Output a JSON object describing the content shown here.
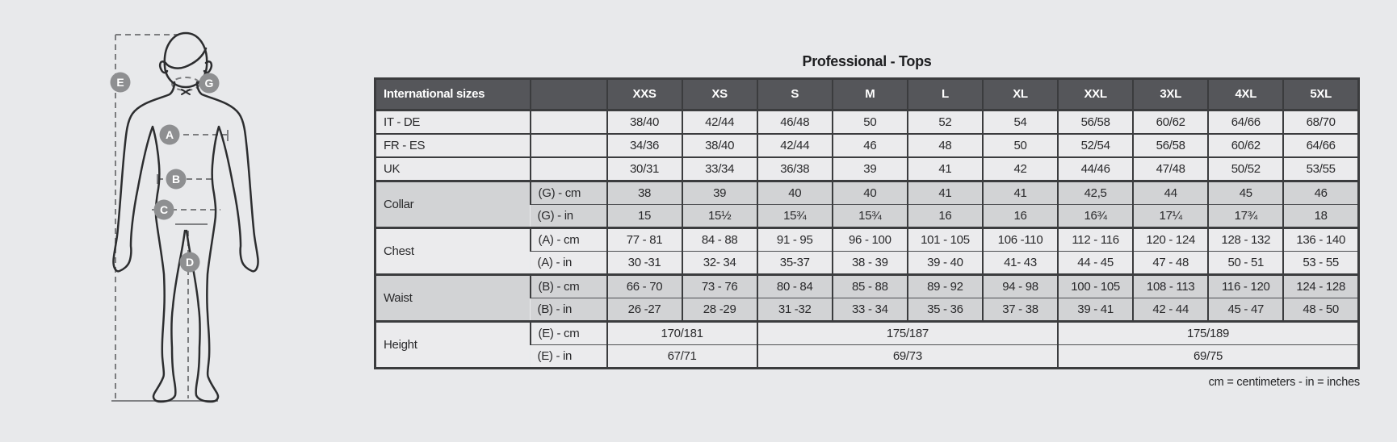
{
  "title": "Professional - Tops",
  "footnote": "cm = centimeters - in = inches",
  "colors": {
    "header_bg": "#55565a",
    "row_light": "#ebebed",
    "row_shade": "#d2d3d5",
    "border": "#3b3c3e",
    "page_bg": "#e8e9eb",
    "badge": "#8e8f91"
  },
  "figure": {
    "badges": [
      "E",
      "G",
      "A",
      "B",
      "C",
      "D"
    ]
  },
  "table": {
    "header": {
      "col1": "International sizes",
      "col2": "",
      "sizes": [
        "XXS",
        "XS",
        "S",
        "M",
        "L",
        "XL",
        "XXL",
        "3XL",
        "4XL",
        "5XL"
      ]
    },
    "simple_rows": [
      {
        "label": "IT - DE",
        "values": [
          "38/40",
          "42/44",
          "46/48",
          "50",
          "52",
          "54",
          "56/58",
          "60/62",
          "64/66",
          "68/70"
        ]
      },
      {
        "label": "FR - ES",
        "values": [
          "34/36",
          "38/40",
          "42/44",
          "46",
          "48",
          "50",
          "52/54",
          "56/58",
          "60/62",
          "64/66"
        ]
      },
      {
        "label": "UK",
        "values": [
          "30/31",
          "33/34",
          "36/38",
          "39",
          "41",
          "42",
          "44/46",
          "47/48",
          "50/52",
          "53/55"
        ]
      }
    ],
    "sections": [
      {
        "label": "Collar",
        "shaded": true,
        "rows": [
          {
            "unit": "(G) - cm",
            "values": [
              "38",
              "39",
              "40",
              "40",
              "41",
              "41",
              "42,5",
              "44",
              "45",
              "46"
            ]
          },
          {
            "unit": "(G)  - in",
            "values": [
              "15",
              "15½",
              "15¾",
              "15¾",
              "16",
              "16",
              "16¾",
              "17¼",
              "17¾",
              "18"
            ]
          }
        ]
      },
      {
        "label": "Chest",
        "shaded": false,
        "rows": [
          {
            "unit": "(A) - cm",
            "values": [
              "77 - 81",
              "84 - 88",
              "91 - 95",
              "96 - 100",
              "101 - 105",
              "106 -110",
              "112 - 116",
              "120 - 124",
              "128 - 132",
              "136 - 140"
            ]
          },
          {
            "unit": "(A) - in",
            "values": [
              "30 -31",
              "32- 34",
              "35-37",
              "38 - 39",
              "39 - 40",
              "41- 43",
              "44 - 45",
              "47 - 48",
              "50 - 51",
              "53 - 55"
            ]
          }
        ]
      },
      {
        "label": "Waist",
        "shaded": true,
        "rows": [
          {
            "unit": "(B) - cm",
            "values": [
              "66 - 70",
              "73 - 76",
              "80 - 84",
              "85 - 88",
              "89 - 92",
              "94 - 98",
              "100 - 105",
              "108 - 113",
              "116 - 120",
              "124 - 128"
            ]
          },
          {
            "unit": "(B) - in",
            "values": [
              "26 -27",
              "28 -29",
              "31 -32",
              "33 - 34",
              "35 - 36",
              "37 - 38",
              "39 - 41",
              "42 - 44",
              "45 - 47",
              "48 - 50"
            ]
          }
        ]
      },
      {
        "label": "Height",
        "shaded": false,
        "rows": [
          {
            "unit": "(E) - cm",
            "values": [
              "170/181",
              "175/187",
              "175/189"
            ],
            "spans": [
              2,
              4,
              4
            ]
          },
          {
            "unit": "(E) - in",
            "values": [
              "67/71",
              "69/73",
              "69/75"
            ],
            "spans": [
              2,
              4,
              4
            ]
          }
        ]
      }
    ]
  }
}
